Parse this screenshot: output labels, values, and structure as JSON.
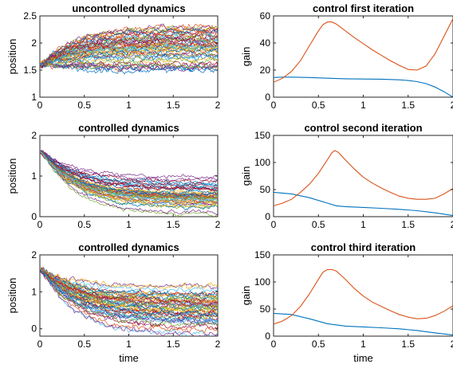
{
  "colors": [
    "#0072BD",
    "#D95319",
    "#EDB120",
    "#7E2F8E",
    "#77AC30",
    "#4DBEEE",
    "#A2142F"
  ],
  "chart_data": [
    {
      "type": "line",
      "title": "uncontrolled dynamics",
      "xlabel": "",
      "ylabel": "position",
      "xlim": [
        0,
        2
      ],
      "ylim": [
        1,
        2.5
      ],
      "xticks": [
        0,
        0.5,
        1,
        1.5,
        2
      ],
      "yticks": [
        1,
        1.5,
        2,
        2.5
      ],
      "grid": false,
      "ensemble": {
        "description": "about 50 stochastic sample paths",
        "count": 50,
        "start": 1.6,
        "mean_end": 1.9,
        "spread_end": 0.22,
        "min_end": 1.45,
        "max_end": 2.3
      }
    },
    {
      "type": "line",
      "title": "control first iteration",
      "xlabel": "",
      "ylabel": "gain",
      "xlim": [
        0,
        2
      ],
      "ylim": [
        0,
        60
      ],
      "xticks": [
        0,
        0.5,
        1,
        1.5,
        2
      ],
      "yticks": [
        0,
        20,
        40,
        60
      ],
      "grid": false,
      "series": [
        {
          "color": "#0072BD",
          "x": [
            0,
            0.1,
            0.2,
            0.4,
            0.6,
            0.8,
            1.0,
            1.2,
            1.4,
            1.5,
            1.6,
            1.7,
            1.8,
            1.9,
            2.0
          ],
          "y": [
            14.5,
            14.8,
            14.8,
            14.5,
            14.0,
            13.6,
            13.4,
            13.3,
            12.8,
            12.3,
            11.5,
            10.0,
            7.5,
            4.0,
            0
          ]
        },
        {
          "color": "#D95319",
          "x": [
            0,
            0.1,
            0.2,
            0.3,
            0.4,
            0.5,
            0.55,
            0.6,
            0.65,
            0.7,
            0.8,
            0.9,
            1.0,
            1.1,
            1.2,
            1.3,
            1.4,
            1.5,
            1.6,
            1.7,
            1.8,
            1.9,
            2.0
          ],
          "y": [
            11,
            14,
            19,
            27,
            38,
            49,
            53.5,
            55.5,
            55.5,
            54,
            49,
            44,
            39.5,
            35,
            31,
            27,
            23.5,
            20.5,
            20,
            23,
            32,
            45,
            58
          ]
        }
      ]
    },
    {
      "type": "line",
      "title": "controlled dynamics",
      "xlabel": "",
      "ylabel": "position",
      "xlim": [
        0,
        2
      ],
      "ylim": [
        0,
        2
      ],
      "xticks": [
        0,
        0.5,
        1,
        1.5,
        2
      ],
      "yticks": [
        0,
        1,
        2
      ],
      "grid": false,
      "ensemble": {
        "description": "about 50 controlled sample paths",
        "count": 50,
        "start": 1.6,
        "mean_end": 0.5,
        "spread_end": 0.2,
        "min_end": 0.05,
        "max_end": 1.0
      }
    },
    {
      "type": "line",
      "title": "control second iteration",
      "xlabel": "",
      "ylabel": "gain",
      "xlim": [
        0,
        2
      ],
      "ylim": [
        0,
        150
      ],
      "xticks": [
        0,
        0.5,
        1,
        1.5,
        2
      ],
      "yticks": [
        0,
        50,
        100,
        150
      ],
      "grid": false,
      "series": [
        {
          "color": "#0072BD",
          "x": [
            0,
            0.2,
            0.4,
            0.6,
            0.7,
            0.8,
            1.0,
            1.2,
            1.4,
            1.6,
            1.8,
            2.0
          ],
          "y": [
            45,
            42,
            35,
            25,
            20,
            18.5,
            17,
            15.5,
            13.5,
            11,
            7,
            2
          ]
        },
        {
          "color": "#D95319",
          "x": [
            0,
            0.1,
            0.2,
            0.3,
            0.4,
            0.5,
            0.6,
            0.65,
            0.68,
            0.72,
            0.8,
            0.9,
            1.0,
            1.1,
            1.2,
            1.3,
            1.4,
            1.5,
            1.6,
            1.7,
            1.8,
            1.9,
            2.0
          ],
          "y": [
            20,
            25,
            32,
            45,
            60,
            80,
            105,
            118,
            122,
            119,
            105,
            88,
            73,
            62,
            53,
            45,
            38,
            34,
            32,
            32,
            34,
            42,
            52
          ]
        }
      ]
    },
    {
      "type": "line",
      "title": "controlled dynamics",
      "xlabel": "time",
      "ylabel": "position",
      "xlim": [
        0,
        2
      ],
      "ylim": [
        -0.2,
        2
      ],
      "xticks": [
        0,
        0.5,
        1,
        1.5,
        2
      ],
      "yticks": [
        0,
        1,
        2
      ],
      "grid": false,
      "ensemble": {
        "description": "about 50 controlled sample paths",
        "count": 50,
        "start": 1.6,
        "mean_end": 0.55,
        "spread_end": 0.3,
        "min_end": -0.15,
        "max_end": 1.15
      }
    },
    {
      "type": "line",
      "title": "control third iteration",
      "xlabel": "time",
      "ylabel": "gain",
      "xlim": [
        0,
        2
      ],
      "ylim": [
        0,
        150
      ],
      "xticks": [
        0,
        0.5,
        1,
        1.5,
        2
      ],
      "yticks": [
        0,
        50,
        100,
        150
      ],
      "grid": false,
      "series": [
        {
          "color": "#0072BD",
          "x": [
            0,
            0.2,
            0.4,
            0.6,
            0.8,
            1.0,
            1.2,
            1.4,
            1.6,
            1.8,
            2.0
          ],
          "y": [
            42,
            40,
            32,
            23,
            18.5,
            17,
            15.5,
            13.5,
            10.5,
            6,
            2
          ]
        },
        {
          "color": "#D95319",
          "x": [
            0,
            0.1,
            0.2,
            0.3,
            0.4,
            0.5,
            0.55,
            0.6,
            0.65,
            0.7,
            0.8,
            0.9,
            1.0,
            1.1,
            1.2,
            1.3,
            1.4,
            1.5,
            1.6,
            1.7,
            1.8,
            1.9,
            2.0
          ],
          "y": [
            22,
            28,
            38,
            55,
            78,
            105,
            118,
            123,
            123,
            120,
            105,
            88,
            74,
            63,
            55,
            47,
            40,
            35,
            32,
            33,
            38,
            46,
            56
          ]
        }
      ]
    }
  ]
}
